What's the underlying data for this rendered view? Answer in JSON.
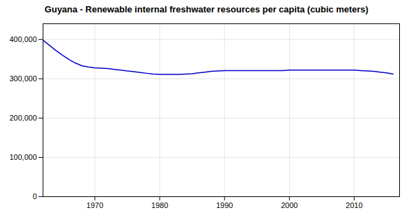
{
  "chart_data": {
    "type": "line",
    "title": "Guyana - Renewable internal freshwater resources per capita (cubic meters)",
    "x": [
      1962,
      1963,
      1964,
      1965,
      1966,
      1967,
      1968,
      1969,
      1970,
      1971,
      1972,
      1973,
      1974,
      1975,
      1976,
      1977,
      1978,
      1979,
      1980,
      1981,
      1982,
      1983,
      1984,
      1985,
      1986,
      1987,
      1988,
      1989,
      1990,
      1991,
      1992,
      1993,
      1994,
      1995,
      1996,
      1997,
      1998,
      1999,
      2000,
      2001,
      2002,
      2003,
      2004,
      2005,
      2006,
      2007,
      2008,
      2009,
      2010,
      2011,
      2012,
      2013,
      2014,
      2015,
      2016
    ],
    "values": [
      398000,
      385000,
      372000,
      360000,
      349000,
      340000,
      333000,
      330000,
      328000,
      327000,
      326000,
      324000,
      322000,
      320000,
      318000,
      316000,
      314000,
      312000,
      311000,
      311000,
      311000,
      311000,
      312000,
      313000,
      315000,
      317000,
      319000,
      320000,
      321000,
      321000,
      321000,
      321000,
      321000,
      321000,
      321000,
      321000,
      321000,
      321000,
      322000,
      322000,
      322000,
      322000,
      322000,
      322000,
      322000,
      322000,
      322000,
      322000,
      322000,
      321000,
      320000,
      319000,
      317000,
      315000,
      312000
    ],
    "color": "#0000CC",
    "xlim": [
      1962,
      2017
    ],
    "xticks": [
      1970,
      1980,
      1990,
      2000,
      2010
    ],
    "ylim": [
      0,
      440000
    ],
    "yticks": [
      0,
      {
        "value": 100000,
        "label": "100,000"
      },
      {
        "value": 200000,
        "label": "200,000"
      },
      {
        "value": 300000,
        "label": "300,000"
      },
      {
        "value": 400000,
        "label": "400,000"
      }
    ],
    "grid": true
  }
}
